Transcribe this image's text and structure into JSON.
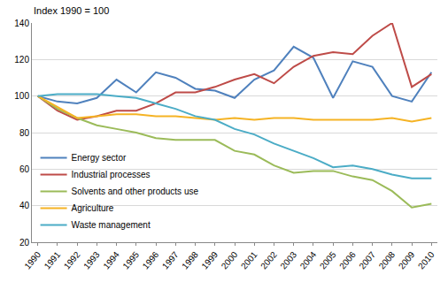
{
  "chart_data": {
    "type": "line",
    "ylabel": "Index 1990 = 100",
    "categories": [
      "1990",
      "1991",
      "1992",
      "1993",
      "1994",
      "1995",
      "1996",
      "1997",
      "1998",
      "1999",
      "2000",
      "2001",
      "2002",
      "2003",
      "2004",
      "2005",
      "2006",
      "2007",
      "2008",
      "2009",
      "2010"
    ],
    "series": [
      {
        "name": "Energy sector",
        "color": "#4f81bd",
        "values": [
          100,
          97,
          96,
          99,
          109,
          102,
          113,
          110,
          104,
          103,
          99,
          109,
          114,
          127,
          121,
          99,
          119,
          116,
          100,
          97,
          113
        ]
      },
      {
        "name": "Industrial processes",
        "color": "#be4b48",
        "values": [
          100,
          92,
          87,
          89,
          92,
          92,
          96,
          102,
          102,
          105,
          109,
          112,
          107,
          116,
          122,
          124,
          123,
          133,
          140,
          105,
          112
        ]
      },
      {
        "name": "Solvents and other products use",
        "color": "#9bbb59",
        "values": [
          100,
          93,
          88,
          84,
          82,
          80,
          77,
          76,
          76,
          76,
          70,
          68,
          62,
          58,
          59,
          59,
          56,
          54,
          48,
          39,
          41
        ]
      },
      {
        "name": "Agriculture",
        "color": "#f5b324",
        "values": [
          100,
          94,
          88,
          89,
          90,
          90,
          89,
          89,
          88,
          87,
          88,
          87,
          88,
          88,
          87,
          87,
          87,
          87,
          88,
          86,
          88
        ]
      },
      {
        "name": "Waste management",
        "color": "#4bacc6",
        "values": [
          100,
          101,
          101,
          101,
          100,
          99,
          96,
          93,
          89,
          87,
          82,
          79,
          74,
          70,
          66,
          61,
          62,
          60,
          57,
          55,
          55
        ]
      }
    ],
    "ylim": [
      20,
      140
    ],
    "yticks": [
      20,
      40,
      60,
      80,
      100,
      120,
      140
    ],
    "grid": true,
    "legend": "lower left"
  }
}
